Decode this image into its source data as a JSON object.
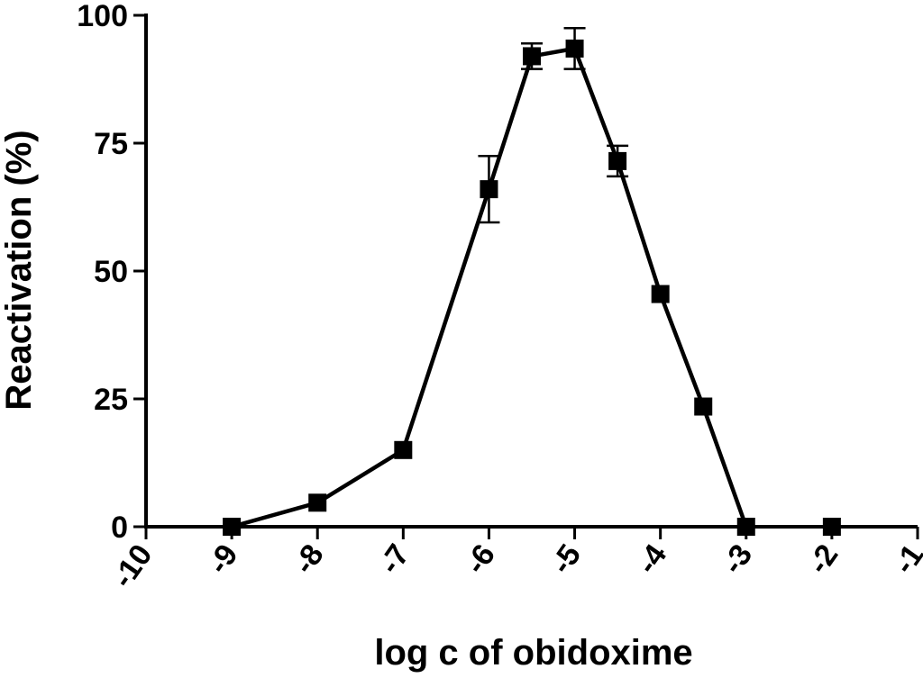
{
  "chart_data": {
    "type": "line",
    "title": "",
    "xlabel": "log c of obidoxime",
    "ylabel": "Reactivation (%)",
    "xlim": [
      -10,
      -1
    ],
    "ylim": [
      0,
      100
    ],
    "xticks": [
      "-10",
      "-9",
      "-8",
      "-7",
      "-6",
      "-5",
      "-4",
      "-3",
      "-2",
      "-1"
    ],
    "yticks": [
      "0",
      "25",
      "50",
      "75",
      "100"
    ],
    "grid": false,
    "legend": "none",
    "series": [
      {
        "x": [
          -9,
          -8,
          -7,
          -6,
          -5.5,
          -5,
          -4.5,
          -4,
          -3.5,
          -3,
          -2
        ],
        "y": [
          0,
          4.7,
          15,
          66,
          92,
          93.5,
          71.5,
          45.5,
          23.5,
          0,
          0
        ],
        "error": [
          0,
          0,
          0,
          6.5,
          2.5,
          4,
          3,
          0,
          0,
          0,
          0
        ],
        "connected_points": 10,
        "color": "#000000",
        "marker": "square"
      }
    ]
  }
}
